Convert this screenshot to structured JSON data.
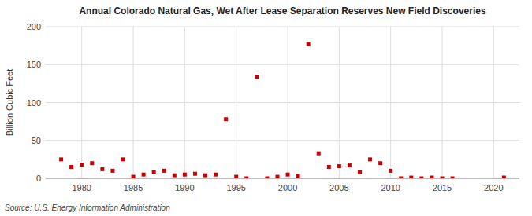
{
  "chart_data": {
    "type": "scatter",
    "title": "Annual Colorado Natural Gas, Wet After Lease Separation Reserves New Field Discoveries",
    "ylabel": "Billion Cubic Feet",
    "source": "Source: U.S. Energy Information Administration",
    "color": "#cc0000",
    "marker": "square",
    "grid": true,
    "xlim": [
      1976.5,
      2022.5
    ],
    "ylim": [
      0,
      200
    ],
    "xticks": [
      1980,
      1985,
      1990,
      1995,
      2000,
      2005,
      2010,
      2015,
      2020
    ],
    "yticks": [
      0,
      50,
      100,
      150,
      200
    ],
    "x": [
      1978,
      1979,
      1980,
      1981,
      1982,
      1983,
      1984,
      1985,
      1986,
      1987,
      1988,
      1989,
      1990,
      1991,
      1992,
      1993,
      1994,
      1995,
      1996,
      1997,
      1998,
      1999,
      2000,
      2001,
      2002,
      2003,
      2004,
      2005,
      2006,
      2007,
      2008,
      2009,
      2010,
      2011,
      2012,
      2013,
      2014,
      2015,
      2016,
      2021
    ],
    "values": [
      25,
      15,
      18,
      20,
      12,
      10,
      25,
      2,
      5,
      8,
      10,
      4,
      5,
      6,
      4,
      5,
      78,
      2,
      0,
      134,
      0,
      2,
      5,
      3,
      177,
      33,
      15,
      16,
      17,
      8,
      25,
      20,
      10,
      0,
      1,
      0,
      1,
      0,
      0,
      1
    ]
  }
}
